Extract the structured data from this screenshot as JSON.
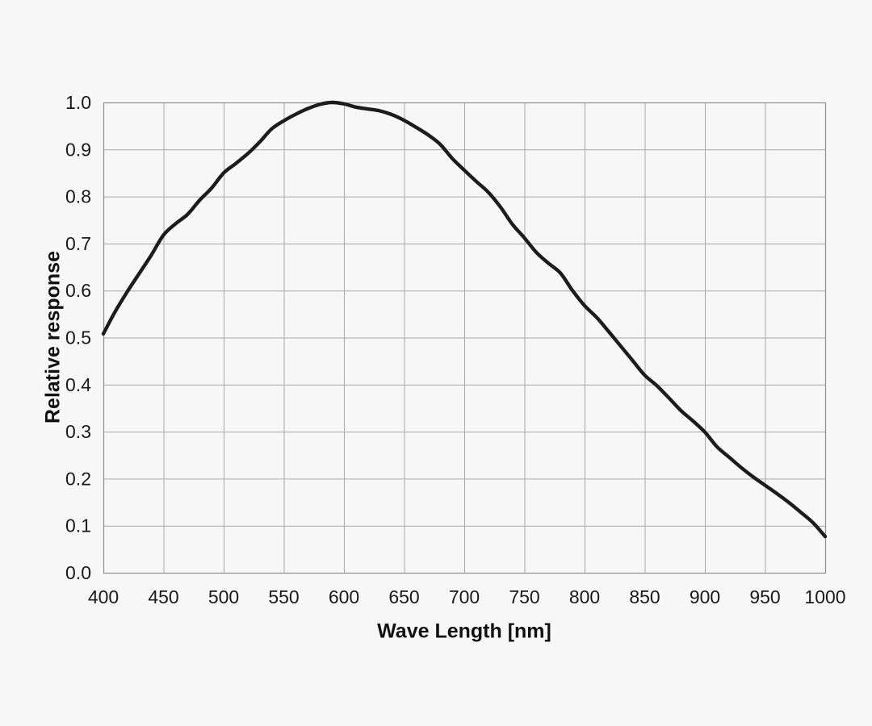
{
  "page": {
    "background_color": "#f7f7f7",
    "title": ""
  },
  "chart_data": {
    "type": "line",
    "title": "",
    "xlabel": "Wave Length [nm]",
    "ylabel": "Relative response",
    "xlim": [
      400,
      1000
    ],
    "ylim": [
      0.0,
      1.0
    ],
    "x_ticks": [
      400,
      450,
      500,
      550,
      600,
      650,
      700,
      750,
      800,
      850,
      900,
      950,
      1000
    ],
    "y_ticks": [
      "0.0",
      "0.1",
      "0.2",
      "0.3",
      "0.4",
      "0.5",
      "0.6",
      "0.7",
      "0.8",
      "0.9",
      "1.0"
    ],
    "grid": true,
    "legend_position": "none",
    "line_color": "#1c1c1c",
    "grid_color": "#a8a8a8",
    "border_color": "#8f8f8f",
    "tick_label_color": "#1a1a1a",
    "series": [
      {
        "name": "relative-response",
        "x": [
          400,
          410,
          420,
          430,
          440,
          450,
          460,
          470,
          480,
          490,
          500,
          510,
          520,
          530,
          540,
          550,
          560,
          570,
          580,
          590,
          600,
          610,
          620,
          630,
          640,
          650,
          660,
          670,
          680,
          690,
          700,
          710,
          720,
          730,
          740,
          750,
          760,
          770,
          780,
          790,
          800,
          810,
          820,
          830,
          840,
          850,
          860,
          870,
          880,
          890,
          900,
          910,
          920,
          930,
          940,
          950,
          960,
          970,
          980,
          990,
          1000
        ],
        "y": [
          0.508,
          0.556,
          0.598,
          0.637,
          0.676,
          0.718,
          0.742,
          0.762,
          0.792,
          0.818,
          0.85,
          0.87,
          0.891,
          0.916,
          0.944,
          0.961,
          0.975,
          0.987,
          0.996,
          1.0,
          0.997,
          0.99,
          0.986,
          0.982,
          0.974,
          0.962,
          0.947,
          0.931,
          0.911,
          0.881,
          0.856,
          0.832,
          0.809,
          0.778,
          0.741,
          0.712,
          0.681,
          0.658,
          0.637,
          0.6,
          0.568,
          0.543,
          0.513,
          0.482,
          0.451,
          0.42,
          0.398,
          0.372,
          0.345,
          0.323,
          0.299,
          0.268,
          0.246,
          0.224,
          0.204,
          0.186,
          0.168,
          0.149,
          0.128,
          0.106,
          0.077
        ]
      }
    ]
  }
}
